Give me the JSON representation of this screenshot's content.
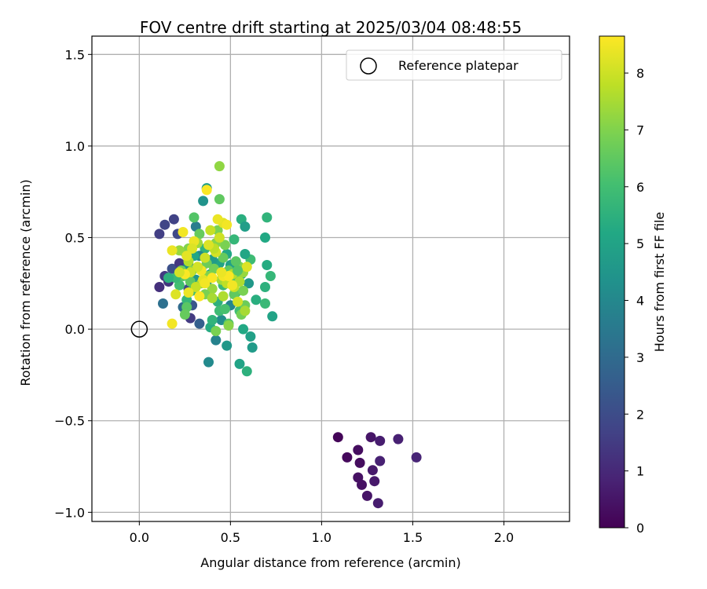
{
  "chart_data": {
    "type": "scatter",
    "title": "FOV centre drift starting at 2025/03/04 08:48:55",
    "xlabel": "Angular distance from reference (arcmin)",
    "ylabel": "Rotation from reference (arcmin)",
    "xlim": [
      -0.26,
      2.36
    ],
    "ylim": [
      -1.05,
      1.6
    ],
    "xticks": [
      0.0,
      0.5,
      1.0,
      1.5,
      2.0
    ],
    "xtick_labels": [
      "0.0",
      "0.5",
      "1.0",
      "1.5",
      "2.0"
    ],
    "yticks": [
      -1.0,
      -0.5,
      0.0,
      0.5,
      1.0,
      1.5
    ],
    "ytick_labels": [
      "−1.0",
      "−0.5",
      "0.0",
      "0.5",
      "1.0",
      "1.5"
    ],
    "grid": true,
    "legend": {
      "position": "top-right",
      "entries": [
        "Reference platepar"
      ]
    },
    "colorbar": {
      "label": "Hours from first FF file",
      "colormap": "viridis",
      "range": [
        0,
        8.65
      ],
      "ticks": [
        0,
        1,
        2,
        3,
        4,
        5,
        6,
        7,
        8
      ],
      "tick_labels": [
        "0",
        "1",
        "2",
        "3",
        "4",
        "5",
        "6",
        "7",
        "8"
      ]
    },
    "reference_point": {
      "x": 0.0,
      "y": 0.0,
      "name": "Reference platepar"
    },
    "points": [
      {
        "x": 1.09,
        "y": -0.59,
        "c": 0.1
      },
      {
        "x": 1.14,
        "y": -0.7,
        "c": 0.2
      },
      {
        "x": 1.2,
        "y": -0.66,
        "c": 0.3
      },
      {
        "x": 1.21,
        "y": -0.73,
        "c": 0.3
      },
      {
        "x": 1.2,
        "y": -0.81,
        "c": 0.4
      },
      {
        "x": 1.22,
        "y": -0.85,
        "c": 0.4
      },
      {
        "x": 1.25,
        "y": -0.91,
        "c": 0.5
      },
      {
        "x": 1.27,
        "y": -0.59,
        "c": 0.5
      },
      {
        "x": 1.28,
        "y": -0.77,
        "c": 0.6
      },
      {
        "x": 1.29,
        "y": -0.83,
        "c": 0.6
      },
      {
        "x": 1.31,
        "y": -0.95,
        "c": 0.7
      },
      {
        "x": 1.32,
        "y": -0.61,
        "c": 0.7
      },
      {
        "x": 1.32,
        "y": -0.72,
        "c": 0.8
      },
      {
        "x": 1.42,
        "y": -0.6,
        "c": 0.8
      },
      {
        "x": 1.52,
        "y": -0.7,
        "c": 0.9
      },
      {
        "x": 0.11,
        "y": 0.52,
        "c": 1.6
      },
      {
        "x": 0.14,
        "y": 0.57,
        "c": 1.8
      },
      {
        "x": 0.19,
        "y": 0.6,
        "c": 1.7
      },
      {
        "x": 0.21,
        "y": 0.52,
        "c": 1.9
      },
      {
        "x": 0.11,
        "y": 0.23,
        "c": 1.2
      },
      {
        "x": 0.13,
        "y": 0.14,
        "c": 3.2
      },
      {
        "x": 0.14,
        "y": 0.29,
        "c": 1.5
      },
      {
        "x": 0.16,
        "y": 0.26,
        "c": 1.3
      },
      {
        "x": 0.18,
        "y": 0.33,
        "c": 2.1
      },
      {
        "x": 0.21,
        "y": 0.3,
        "c": 2.5
      },
      {
        "x": 0.22,
        "y": 0.36,
        "c": 1.4
      },
      {
        "x": 0.24,
        "y": 0.12,
        "c": 3.0
      },
      {
        "x": 0.27,
        "y": 0.22,
        "c": 1.9
      },
      {
        "x": 0.28,
        "y": 0.06,
        "c": 1.5
      },
      {
        "x": 0.29,
        "y": 0.13,
        "c": 2.3
      },
      {
        "x": 0.31,
        "y": 0.56,
        "c": 3.6
      },
      {
        "x": 0.33,
        "y": 0.03,
        "c": 2.6
      },
      {
        "x": 0.35,
        "y": 0.7,
        "c": 4.4
      },
      {
        "x": 0.37,
        "y": 0.77,
        "c": 4.8
      },
      {
        "x": 0.38,
        "y": -0.18,
        "c": 4.1
      },
      {
        "x": 0.42,
        "y": -0.06,
        "c": 3.8
      },
      {
        "x": 0.45,
        "y": 0.05,
        "c": 4.2
      },
      {
        "x": 0.48,
        "y": -0.09,
        "c": 4.6
      },
      {
        "x": 0.5,
        "y": 0.13,
        "c": 3.9
      },
      {
        "x": 0.55,
        "y": -0.19,
        "c": 5.0
      },
      {
        "x": 0.59,
        "y": -0.23,
        "c": 5.5
      },
      {
        "x": 0.61,
        "y": -0.04,
        "c": 4.9
      },
      {
        "x": 0.62,
        "y": -0.1,
        "c": 4.7
      },
      {
        "x": 0.56,
        "y": 0.6,
        "c": 5.4
      },
      {
        "x": 0.58,
        "y": 0.56,
        "c": 4.8
      },
      {
        "x": 0.69,
        "y": 0.5,
        "c": 5.2
      },
      {
        "x": 0.7,
        "y": 0.61,
        "c": 5.6
      },
      {
        "x": 0.7,
        "y": 0.35,
        "c": 5.3
      },
      {
        "x": 0.72,
        "y": 0.29,
        "c": 5.7
      },
      {
        "x": 0.73,
        "y": 0.07,
        "c": 5.0
      },
      {
        "x": 0.69,
        "y": 0.23,
        "c": 5.5
      },
      {
        "x": 0.69,
        "y": 0.14,
        "c": 5.8
      },
      {
        "x": 0.64,
        "y": 0.16,
        "c": 5.4
      },
      {
        "x": 0.61,
        "y": 0.38,
        "c": 5.9
      },
      {
        "x": 0.6,
        "y": 0.25,
        "c": 4.6
      },
      {
        "x": 0.58,
        "y": 0.41,
        "c": 5.1
      },
      {
        "x": 0.56,
        "y": 0.3,
        "c": 5.3
      },
      {
        "x": 0.55,
        "y": 0.1,
        "c": 6.0
      },
      {
        "x": 0.53,
        "y": 0.2,
        "c": 5.6
      },
      {
        "x": 0.52,
        "y": 0.49,
        "c": 5.7
      },
      {
        "x": 0.5,
        "y": 0.35,
        "c": 4.9
      },
      {
        "x": 0.48,
        "y": 0.41,
        "c": 5.2
      },
      {
        "x": 0.46,
        "y": 0.24,
        "c": 5.8
      },
      {
        "x": 0.44,
        "y": 0.36,
        "c": 5.0
      },
      {
        "x": 0.43,
        "y": 0.15,
        "c": 5.5
      },
      {
        "x": 0.4,
        "y": 0.38,
        "c": 4.7
      },
      {
        "x": 0.39,
        "y": 0.3,
        "c": 5.3
      },
      {
        "x": 0.37,
        "y": 0.26,
        "c": 4.4
      },
      {
        "x": 0.36,
        "y": 0.44,
        "c": 5.6
      },
      {
        "x": 0.34,
        "y": 0.33,
        "c": 3.5
      },
      {
        "x": 0.33,
        "y": 0.4,
        "c": 4.0
      },
      {
        "x": 0.31,
        "y": 0.27,
        "c": 4.5
      },
      {
        "x": 0.3,
        "y": 0.4,
        "c": 5.1
      },
      {
        "x": 0.29,
        "y": 0.21,
        "c": 5.9
      },
      {
        "x": 0.27,
        "y": 0.35,
        "c": 4.3
      },
      {
        "x": 0.26,
        "y": 0.16,
        "c": 5.7
      },
      {
        "x": 0.25,
        "y": 0.42,
        "c": 6.2
      },
      {
        "x": 0.24,
        "y": 0.29,
        "c": 6.4
      },
      {
        "x": 0.22,
        "y": 0.24,
        "c": 6.0
      },
      {
        "x": 0.2,
        "y": 0.28,
        "c": 5.8
      },
      {
        "x": 0.16,
        "y": 0.28,
        "c": 5.5
      },
      {
        "x": 0.39,
        "y": 0.01,
        "c": 5.3
      },
      {
        "x": 0.4,
        "y": 0.05,
        "c": 5.6
      },
      {
        "x": 0.44,
        "y": 0.1,
        "c": 5.9
      },
      {
        "x": 0.47,
        "y": 0.11,
        "c": 6.1
      },
      {
        "x": 0.49,
        "y": 0.03,
        "c": 6.3
      },
      {
        "x": 0.52,
        "y": 0.19,
        "c": 6.5
      },
      {
        "x": 0.54,
        "y": 0.28,
        "c": 6.6
      },
      {
        "x": 0.56,
        "y": 0.08,
        "c": 6.8
      },
      {
        "x": 0.57,
        "y": 0.0,
        "c": 5.2
      },
      {
        "x": 0.58,
        "y": 0.13,
        "c": 6.7
      },
      {
        "x": 0.57,
        "y": 0.21,
        "c": 6.9
      },
      {
        "x": 0.55,
        "y": 0.34,
        "c": 7.0
      },
      {
        "x": 0.53,
        "y": 0.37,
        "c": 6.4
      },
      {
        "x": 0.51,
        "y": 0.26,
        "c": 6.2
      },
      {
        "x": 0.49,
        "y": 0.32,
        "c": 6.5
      },
      {
        "x": 0.47,
        "y": 0.46,
        "c": 6.9
      },
      {
        "x": 0.46,
        "y": 0.39,
        "c": 6.6
      },
      {
        "x": 0.44,
        "y": 0.89,
        "c": 7.2
      },
      {
        "x": 0.44,
        "y": 0.71,
        "c": 6.5
      },
      {
        "x": 0.43,
        "y": 0.54,
        "c": 6.9
      },
      {
        "x": 0.42,
        "y": 0.47,
        "c": 7.1
      },
      {
        "x": 0.41,
        "y": 0.33,
        "c": 6.8
      },
      {
        "x": 0.4,
        "y": 0.22,
        "c": 7.3
      },
      {
        "x": 0.38,
        "y": 0.29,
        "c": 7.0
      },
      {
        "x": 0.37,
        "y": 0.36,
        "c": 6.7
      },
      {
        "x": 0.36,
        "y": 0.19,
        "c": 6.9
      },
      {
        "x": 0.34,
        "y": 0.25,
        "c": 7.2
      },
      {
        "x": 0.33,
        "y": 0.52,
        "c": 6.6
      },
      {
        "x": 0.32,
        "y": 0.47,
        "c": 7.4
      },
      {
        "x": 0.3,
        "y": 0.61,
        "c": 6.3
      },
      {
        "x": 0.29,
        "y": 0.32,
        "c": 7.1
      },
      {
        "x": 0.28,
        "y": 0.26,
        "c": 6.5
      },
      {
        "x": 0.27,
        "y": 0.44,
        "c": 7.0
      },
      {
        "x": 0.26,
        "y": 0.12,
        "c": 6.4
      },
      {
        "x": 0.25,
        "y": 0.08,
        "c": 6.6
      },
      {
        "x": 0.23,
        "y": 0.32,
        "c": 6.8
      },
      {
        "x": 0.22,
        "y": 0.43,
        "c": 7.3
      },
      {
        "x": 0.4,
        "y": 0.17,
        "c": 7.5
      },
      {
        "x": 0.42,
        "y": -0.01,
        "c": 6.9
      },
      {
        "x": 0.45,
        "y": 0.27,
        "c": 7.4
      },
      {
        "x": 0.46,
        "y": 0.18,
        "c": 7.6
      },
      {
        "x": 0.48,
        "y": 0.25,
        "c": 7.8
      },
      {
        "x": 0.49,
        "y": 0.02,
        "c": 7.1
      },
      {
        "x": 0.51,
        "y": 0.3,
        "c": 7.7
      },
      {
        "x": 0.52,
        "y": 0.23,
        "c": 7.9
      },
      {
        "x": 0.54,
        "y": 0.15,
        "c": 8.1
      },
      {
        "x": 0.55,
        "y": 0.26,
        "c": 7.6
      },
      {
        "x": 0.57,
        "y": 0.31,
        "c": 7.3
      },
      {
        "x": 0.58,
        "y": 0.1,
        "c": 7.5
      },
      {
        "x": 0.59,
        "y": 0.34,
        "c": 8.2
      },
      {
        "x": 0.44,
        "y": 0.5,
        "c": 8.0
      },
      {
        "x": 0.46,
        "y": 0.58,
        "c": 8.3
      },
      {
        "x": 0.48,
        "y": 0.57,
        "c": 8.5
      },
      {
        "x": 0.43,
        "y": 0.6,
        "c": 8.4
      },
      {
        "x": 0.42,
        "y": 0.42,
        "c": 8.1
      },
      {
        "x": 0.41,
        "y": 0.44,
        "c": 7.8
      },
      {
        "x": 0.39,
        "y": 0.54,
        "c": 7.9
      },
      {
        "x": 0.38,
        "y": 0.46,
        "c": 8.2
      },
      {
        "x": 0.37,
        "y": 0.76,
        "c": 8.6
      },
      {
        "x": 0.36,
        "y": 0.39,
        "c": 8.0
      },
      {
        "x": 0.35,
        "y": 0.27,
        "c": 8.3
      },
      {
        "x": 0.34,
        "y": 0.32,
        "c": 8.5
      },
      {
        "x": 0.32,
        "y": 0.34,
        "c": 8.1
      },
      {
        "x": 0.31,
        "y": 0.23,
        "c": 7.9
      },
      {
        "x": 0.3,
        "y": 0.48,
        "c": 8.4
      },
      {
        "x": 0.29,
        "y": 0.44,
        "c": 8.2
      },
      {
        "x": 0.28,
        "y": 0.31,
        "c": 8.0
      },
      {
        "x": 0.27,
        "y": 0.37,
        "c": 7.7
      },
      {
        "x": 0.26,
        "y": 0.4,
        "c": 8.3
      },
      {
        "x": 0.25,
        "y": 0.3,
        "c": 8.6
      },
      {
        "x": 0.24,
        "y": 0.53,
        "c": 8.5
      },
      {
        "x": 0.22,
        "y": 0.31,
        "c": 8.1
      },
      {
        "x": 0.2,
        "y": 0.19,
        "c": 8.2
      },
      {
        "x": 0.18,
        "y": 0.43,
        "c": 8.4
      },
      {
        "x": 0.18,
        "y": 0.03,
        "c": 8.5
      },
      {
        "x": 0.27,
        "y": 0.2,
        "c": 8.4
      },
      {
        "x": 0.33,
        "y": 0.18,
        "c": 8.6
      },
      {
        "x": 0.46,
        "y": 0.29,
        "c": 8.5
      },
      {
        "x": 0.49,
        "y": 0.29,
        "c": 8.6
      },
      {
        "x": 0.45,
        "y": 0.31,
        "c": 8.4
      },
      {
        "x": 0.51,
        "y": 0.24,
        "c": 8.5
      },
      {
        "x": 0.4,
        "y": 0.28,
        "c": 8.6
      },
      {
        "x": 0.36,
        "y": 0.25,
        "c": 8.5
      },
      {
        "x": 0.54,
        "y": 0.32,
        "c": 6.3
      }
    ]
  }
}
